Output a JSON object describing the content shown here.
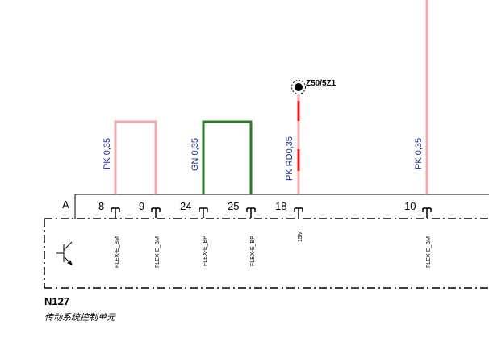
{
  "connector": {
    "label": "A"
  },
  "pins": [
    {
      "number": "8",
      "signal": "FLEX-E_BM"
    },
    {
      "number": "9",
      "signal": "FLEX-E_BM"
    },
    {
      "number": "24",
      "signal": "FLEX-E_BP"
    },
    {
      "number": "25",
      "signal": "FLEX-E_BP"
    },
    {
      "number": "18",
      "signal": "15M"
    },
    {
      "number": "10",
      "signal": "FLEX-E_BM"
    }
  ],
  "wires": [
    {
      "label": "PK  0,35",
      "color": "#f4aaaa"
    },
    {
      "label": "GN  0,35",
      "color": "#2a7a2a"
    },
    {
      "label": "PK RD0,35",
      "color": "#f4aaaa",
      "stripe": "#e81818"
    },
    {
      "label": "PK  0,35",
      "color": "#f4aaaa"
    }
  ],
  "splice": {
    "label": "Z50/5Z1"
  },
  "module": {
    "id": "N127",
    "name": "传动系统控制单元"
  }
}
